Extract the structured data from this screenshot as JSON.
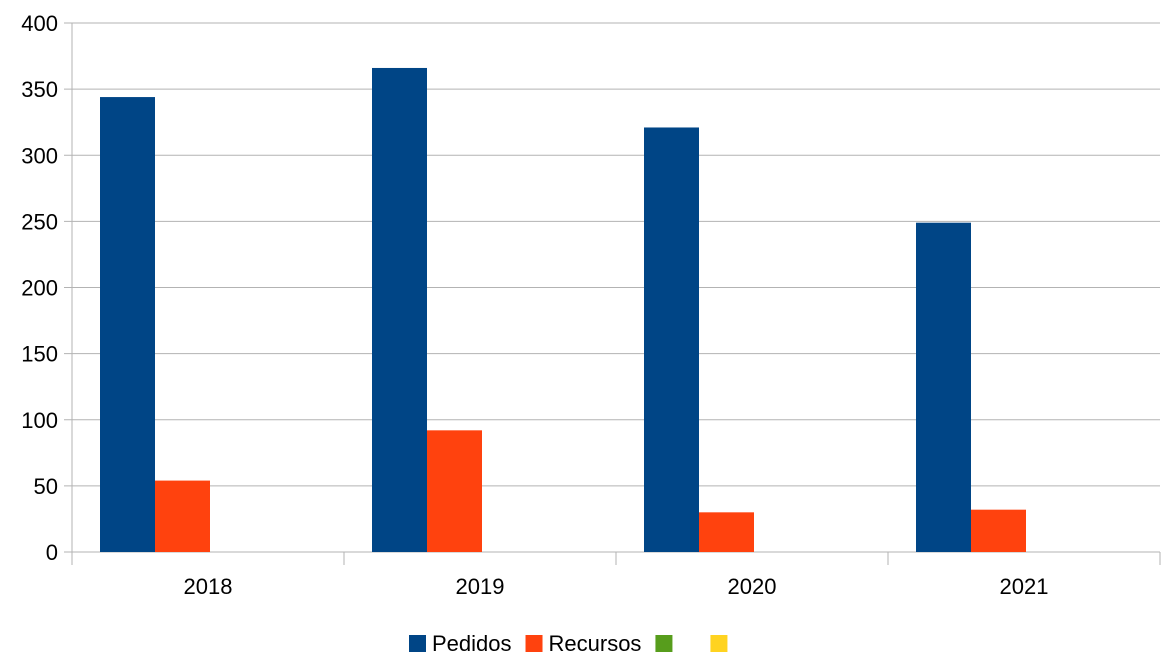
{
  "chart_data": {
    "type": "bar",
    "title": "",
    "xlabel": "",
    "ylabel": "",
    "categories": [
      "2018",
      "2019",
      "2020",
      "2021"
    ],
    "ylim": [
      0,
      400
    ],
    "y_ticks": [
      0,
      50,
      100,
      150,
      200,
      250,
      300,
      350,
      400
    ],
    "grid": true,
    "legend_position": "bottom",
    "series": [
      {
        "name": "Pedidos",
        "color": "#004586",
        "values": [
          344,
          366,
          321,
          249
        ]
      },
      {
        "name": "Recursos",
        "color": "#ff420e",
        "values": [
          54,
          92,
          30,
          32
        ]
      },
      {
        "name": "",
        "color": "#579d1c",
        "values": [
          0,
          0,
          0,
          0
        ]
      },
      {
        "name": "",
        "color": "#ffd320",
        "values": [
          0,
          0,
          0,
          0
        ]
      }
    ]
  }
}
